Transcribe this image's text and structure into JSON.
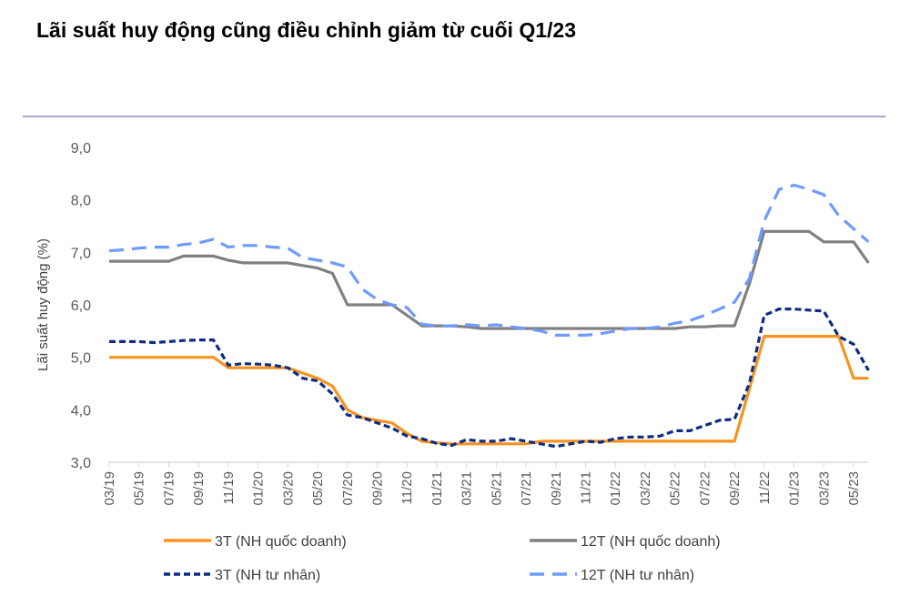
{
  "title": "Lãi suất huy động cũng điều chỉnh giảm từ cuối Q1/23",
  "chart_data": {
    "type": "line",
    "title": "Lãi suất huy động cũng điều chỉnh giảm từ cuối Q1/23",
    "ylabel": "Lãi suất huy động (%)",
    "xlabel": "",
    "ylim": [
      3.0,
      9.0
    ],
    "yticks": [
      "3,0",
      "4,0",
      "5,0",
      "6,0",
      "7,0",
      "8,0",
      "9,0"
    ],
    "xtick_labels": [
      "03/19",
      "05/19",
      "07/19",
      "09/19",
      "11/19",
      "01/20",
      "03/20",
      "05/20",
      "07/20",
      "09/20",
      "11/20",
      "01/21",
      "03/21",
      "05/21",
      "07/21",
      "09/21",
      "11/21",
      "01/22",
      "03/22",
      "05/22",
      "07/22",
      "09/22",
      "11/22",
      "01/23",
      "03/23",
      "05/23"
    ],
    "x": [
      "03/19",
      "04/19",
      "05/19",
      "06/19",
      "07/19",
      "08/19",
      "09/19",
      "10/19",
      "11/19",
      "12/19",
      "01/20",
      "02/20",
      "03/20",
      "04/20",
      "05/20",
      "06/20",
      "07/20",
      "08/20",
      "09/20",
      "10/20",
      "11/20",
      "12/20",
      "01/21",
      "02/21",
      "03/21",
      "04/21",
      "05/21",
      "06/21",
      "07/21",
      "08/21",
      "09/21",
      "10/21",
      "11/21",
      "12/21",
      "01/22",
      "02/22",
      "03/22",
      "04/22",
      "05/22",
      "06/22",
      "07/22",
      "08/22",
      "09/22",
      "10/22",
      "11/22",
      "12/22",
      "01/23",
      "02/23",
      "03/23",
      "04/23",
      "05/23",
      "06/23"
    ],
    "grid": false,
    "legend_placement": "bottom",
    "series": [
      {
        "name": "3T (NH quốc doanh)",
        "color": "#f7931e",
        "style": "solid",
        "values": [
          5.0,
          5.0,
          5.0,
          5.0,
          5.0,
          5.0,
          5.0,
          5.0,
          4.8,
          4.8,
          4.8,
          4.8,
          4.8,
          4.7,
          4.6,
          4.45,
          4.0,
          3.85,
          3.8,
          3.75,
          3.55,
          3.4,
          3.37,
          3.35,
          3.35,
          3.35,
          3.35,
          3.35,
          3.35,
          3.4,
          3.4,
          3.4,
          3.4,
          3.4,
          3.4,
          3.4,
          3.4,
          3.4,
          3.4,
          3.4,
          3.4,
          3.4,
          3.4,
          4.4,
          5.4,
          5.4,
          5.4,
          5.4,
          5.4,
          5.4,
          4.6,
          4.6
        ]
      },
      {
        "name": "12T (NH quốc doanh)",
        "color": "#808080",
        "style": "solid",
        "values": [
          6.83,
          6.83,
          6.83,
          6.83,
          6.83,
          6.93,
          6.93,
          6.93,
          6.85,
          6.8,
          6.8,
          6.8,
          6.8,
          6.75,
          6.7,
          6.6,
          6.0,
          6.0,
          6.0,
          6.0,
          5.8,
          5.6,
          5.6,
          5.6,
          5.58,
          5.55,
          5.55,
          5.55,
          5.55,
          5.55,
          5.55,
          5.55,
          5.55,
          5.55,
          5.55,
          5.55,
          5.55,
          5.55,
          5.55,
          5.58,
          5.58,
          5.6,
          5.6,
          6.4,
          7.4,
          7.4,
          7.4,
          7.4,
          7.2,
          7.2,
          7.2,
          6.8
        ]
      },
      {
        "name": "3T (NH tư nhân)",
        "color": "#0d2c84",
        "style": "dotted",
        "values": [
          5.3,
          5.3,
          5.3,
          5.28,
          5.3,
          5.32,
          5.33,
          5.33,
          4.85,
          4.88,
          4.87,
          4.85,
          4.8,
          4.6,
          4.55,
          4.3,
          3.9,
          3.85,
          3.75,
          3.65,
          3.5,
          3.45,
          3.36,
          3.32,
          3.43,
          3.4,
          3.4,
          3.45,
          3.4,
          3.35,
          3.3,
          3.35,
          3.4,
          3.38,
          3.45,
          3.48,
          3.48,
          3.5,
          3.6,
          3.6,
          3.7,
          3.8,
          3.82,
          4.5,
          5.8,
          5.92,
          5.92,
          5.9,
          5.88,
          5.4,
          5.25,
          4.75
        ]
      },
      {
        "name": "12T (NH tư nhân)",
        "color": "#6f9bff",
        "style": "dashed",
        "values": [
          7.03,
          7.05,
          7.08,
          7.1,
          7.1,
          7.15,
          7.18,
          7.25,
          7.1,
          7.13,
          7.13,
          7.1,
          7.08,
          6.9,
          6.85,
          6.8,
          6.72,
          6.3,
          6.1,
          6.0,
          5.95,
          5.63,
          5.6,
          5.6,
          5.62,
          5.6,
          5.62,
          5.58,
          5.55,
          5.5,
          5.42,
          5.42,
          5.42,
          5.45,
          5.5,
          5.55,
          5.55,
          5.58,
          5.65,
          5.7,
          5.8,
          5.92,
          6.05,
          6.5,
          7.6,
          8.2,
          8.28,
          8.2,
          8.1,
          7.7,
          7.45,
          7.2
        ]
      }
    ]
  },
  "colors": {
    "divider": "#a9a6cf",
    "axis": "#d9d9d9"
  }
}
